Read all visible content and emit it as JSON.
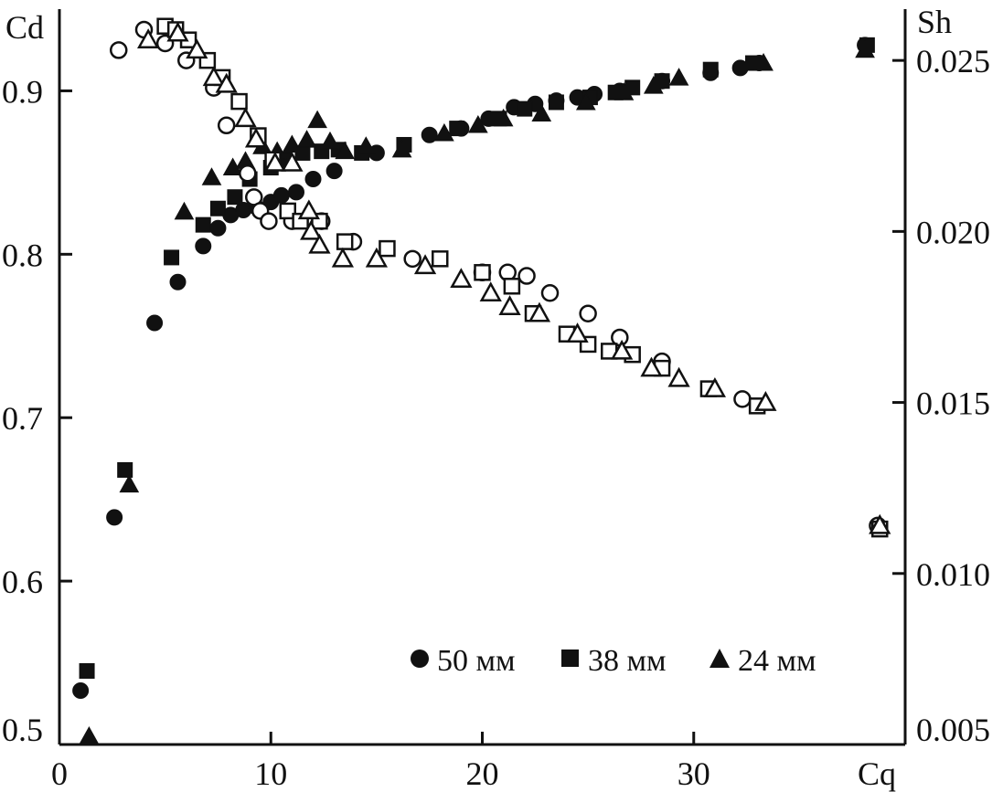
{
  "chart_data": {
    "type": "scatter",
    "x_axis": {
      "label": "Cq",
      "range": [
        0,
        40
      ],
      "ticks": [
        "0",
        "10",
        "20",
        "30"
      ],
      "tick_values": [
        0,
        10,
        20,
        30
      ]
    },
    "y_left": {
      "label": "Cd",
      "range": [
        0.5,
        0.95
      ],
      "ticks": [
        "0.5",
        "0.6",
        "0.7",
        "0.8",
        "0.9"
      ],
      "tick_values": [
        0.5,
        0.6,
        0.7,
        0.8,
        0.9
      ]
    },
    "y_right": {
      "label": "Sh",
      "range": [
        0.005,
        0.0265
      ],
      "ticks": [
        "0.005",
        "0.010",
        "0.015",
        "0.020",
        "0.025"
      ],
      "tick_values": [
        0.005,
        0.01,
        0.015,
        0.02,
        0.025
      ]
    },
    "grid": false,
    "legend_position": "bottom-right",
    "legend": [
      {
        "marker": "circle",
        "label": "50 мм"
      },
      {
        "marker": "square",
        "label": "38 мм"
      },
      {
        "marker": "triangle",
        "label": "24 мм"
      }
    ],
    "series": [
      {
        "name": "50 мм",
        "marker": "circle",
        "filled": true,
        "axis": "left",
        "points": [
          [
            1.0,
            0.533
          ],
          [
            2.6,
            0.639
          ],
          [
            4.5,
            0.758
          ],
          [
            5.6,
            0.783
          ],
          [
            6.8,
            0.805
          ],
          [
            7.5,
            0.816
          ],
          [
            8.1,
            0.824
          ],
          [
            8.7,
            0.827
          ],
          [
            9.3,
            0.829
          ],
          [
            10.0,
            0.832
          ],
          [
            10.5,
            0.836
          ],
          [
            11.2,
            0.838
          ],
          [
            12.0,
            0.846
          ],
          [
            13.0,
            0.851
          ],
          [
            15.0,
            0.862
          ],
          [
            17.5,
            0.873
          ],
          [
            19.0,
            0.877
          ],
          [
            20.3,
            0.883
          ],
          [
            21.5,
            0.89
          ],
          [
            22.5,
            0.892
          ],
          [
            23.5,
            0.894
          ],
          [
            24.5,
            0.896
          ],
          [
            25.3,
            0.898
          ],
          [
            26.5,
            0.9
          ],
          [
            28.5,
            0.906
          ],
          [
            30.8,
            0.911
          ],
          [
            32.2,
            0.914
          ],
          [
            33.1,
            0.917
          ],
          [
            38.1,
            0.928
          ]
        ]
      },
      {
        "name": "38 мм",
        "marker": "square",
        "filled": true,
        "axis": "left",
        "points": [
          [
            1.3,
            0.545
          ],
          [
            3.1,
            0.668
          ],
          [
            5.3,
            0.798
          ],
          [
            6.8,
            0.818
          ],
          [
            7.5,
            0.828
          ],
          [
            8.3,
            0.835
          ],
          [
            9.0,
            0.846
          ],
          [
            10.0,
            0.853
          ],
          [
            10.6,
            0.858
          ],
          [
            11.5,
            0.862
          ],
          [
            12.4,
            0.863
          ],
          [
            13.2,
            0.864
          ],
          [
            14.3,
            0.862
          ],
          [
            16.3,
            0.867
          ],
          [
            18.8,
            0.877
          ],
          [
            20.8,
            0.883
          ],
          [
            22.0,
            0.889
          ],
          [
            23.5,
            0.893
          ],
          [
            25.1,
            0.896
          ],
          [
            26.3,
            0.899
          ],
          [
            27.1,
            0.902
          ],
          [
            28.5,
            0.906
          ],
          [
            30.8,
            0.913
          ],
          [
            32.8,
            0.917
          ],
          [
            38.2,
            0.928
          ]
        ]
      },
      {
        "name": "24 мм",
        "marker": "triangle",
        "filled": true,
        "axis": "left",
        "points": [
          [
            1.4,
            0.505
          ],
          [
            3.3,
            0.659
          ],
          [
            5.9,
            0.826
          ],
          [
            7.2,
            0.847
          ],
          [
            8.2,
            0.853
          ],
          [
            8.8,
            0.857
          ],
          [
            9.6,
            0.866
          ],
          [
            10.3,
            0.863
          ],
          [
            11.0,
            0.867
          ],
          [
            11.7,
            0.87
          ],
          [
            12.2,
            0.882
          ],
          [
            12.8,
            0.869
          ],
          [
            13.5,
            0.863
          ],
          [
            14.5,
            0.866
          ],
          [
            16.2,
            0.864
          ],
          [
            18.2,
            0.874
          ],
          [
            19.8,
            0.879
          ],
          [
            21.0,
            0.883
          ],
          [
            22.8,
            0.886
          ],
          [
            24.9,
            0.893
          ],
          [
            26.7,
            0.899
          ],
          [
            28.1,
            0.903
          ],
          [
            29.3,
            0.908
          ],
          [
            33.3,
            0.917
          ],
          [
            38.1,
            0.925
          ]
        ]
      },
      {
        "name": "50 мм",
        "marker": "circle",
        "filled": false,
        "axis": "right",
        "points": [
          [
            2.8,
            0.0253
          ],
          [
            4.0,
            0.0259
          ],
          [
            5.0,
            0.0255
          ],
          [
            6.0,
            0.025
          ],
          [
            7.3,
            0.0242
          ],
          [
            7.9,
            0.0231
          ],
          [
            8.9,
            0.0217
          ],
          [
            9.2,
            0.021
          ],
          [
            9.5,
            0.0206
          ],
          [
            9.9,
            0.0203
          ],
          [
            11.0,
            0.0203
          ],
          [
            12.4,
            0.0203
          ],
          [
            13.9,
            0.0197
          ],
          [
            16.7,
            0.0192
          ],
          [
            20.0,
            0.0188
          ],
          [
            21.2,
            0.0188
          ],
          [
            22.1,
            0.0187
          ],
          [
            23.2,
            0.0182
          ],
          [
            25.0,
            0.0176
          ],
          [
            26.5,
            0.0169
          ],
          [
            28.5,
            0.0162
          ],
          [
            32.3,
            0.0151
          ],
          [
            38.7,
            0.0114
          ]
        ]
      },
      {
        "name": "38 мм",
        "marker": "square",
        "filled": false,
        "axis": "right",
        "points": [
          [
            5.0,
            0.026
          ],
          [
            5.5,
            0.0259
          ],
          [
            6.1,
            0.0256
          ],
          [
            7.0,
            0.025
          ],
          [
            7.7,
            0.0245
          ],
          [
            8.5,
            0.0238
          ],
          [
            9.4,
            0.0228
          ],
          [
            10.1,
            0.0221
          ],
          [
            10.8,
            0.0206
          ],
          [
            11.4,
            0.0203
          ],
          [
            12.3,
            0.0203
          ],
          [
            13.5,
            0.0197
          ],
          [
            15.5,
            0.0195
          ],
          [
            18.0,
            0.0192
          ],
          [
            20.0,
            0.0188
          ],
          [
            21.4,
            0.0184
          ],
          [
            22.4,
            0.0176
          ],
          [
            24.0,
            0.017
          ],
          [
            25.0,
            0.0167
          ],
          [
            26.0,
            0.0165
          ],
          [
            27.1,
            0.0164
          ],
          [
            28.5,
            0.016
          ],
          [
            30.7,
            0.0154
          ],
          [
            33.0,
            0.0149
          ],
          [
            38.8,
            0.0113
          ]
        ]
      },
      {
        "name": "24 мм",
        "marker": "triangle",
        "filled": false,
        "axis": "right",
        "points": [
          [
            4.2,
            0.0256
          ],
          [
            5.6,
            0.0258
          ],
          [
            6.5,
            0.0253
          ],
          [
            7.3,
            0.0245
          ],
          [
            7.9,
            0.0243
          ],
          [
            8.8,
            0.0233
          ],
          [
            9.3,
            0.0227
          ],
          [
            10.2,
            0.022
          ],
          [
            11.0,
            0.022
          ],
          [
            11.8,
            0.0206
          ],
          [
            11.9,
            0.02
          ],
          [
            12.3,
            0.0196
          ],
          [
            13.4,
            0.0192
          ],
          [
            15.0,
            0.0192
          ],
          [
            17.3,
            0.019
          ],
          [
            19.0,
            0.0186
          ],
          [
            20.4,
            0.0182
          ],
          [
            21.3,
            0.0178
          ],
          [
            22.7,
            0.0176
          ],
          [
            24.5,
            0.017
          ],
          [
            26.6,
            0.0165
          ],
          [
            28.0,
            0.016
          ],
          [
            29.3,
            0.0157
          ],
          [
            31.0,
            0.0154
          ],
          [
            33.4,
            0.015
          ],
          [
            38.8,
            0.0114
          ]
        ]
      }
    ]
  }
}
